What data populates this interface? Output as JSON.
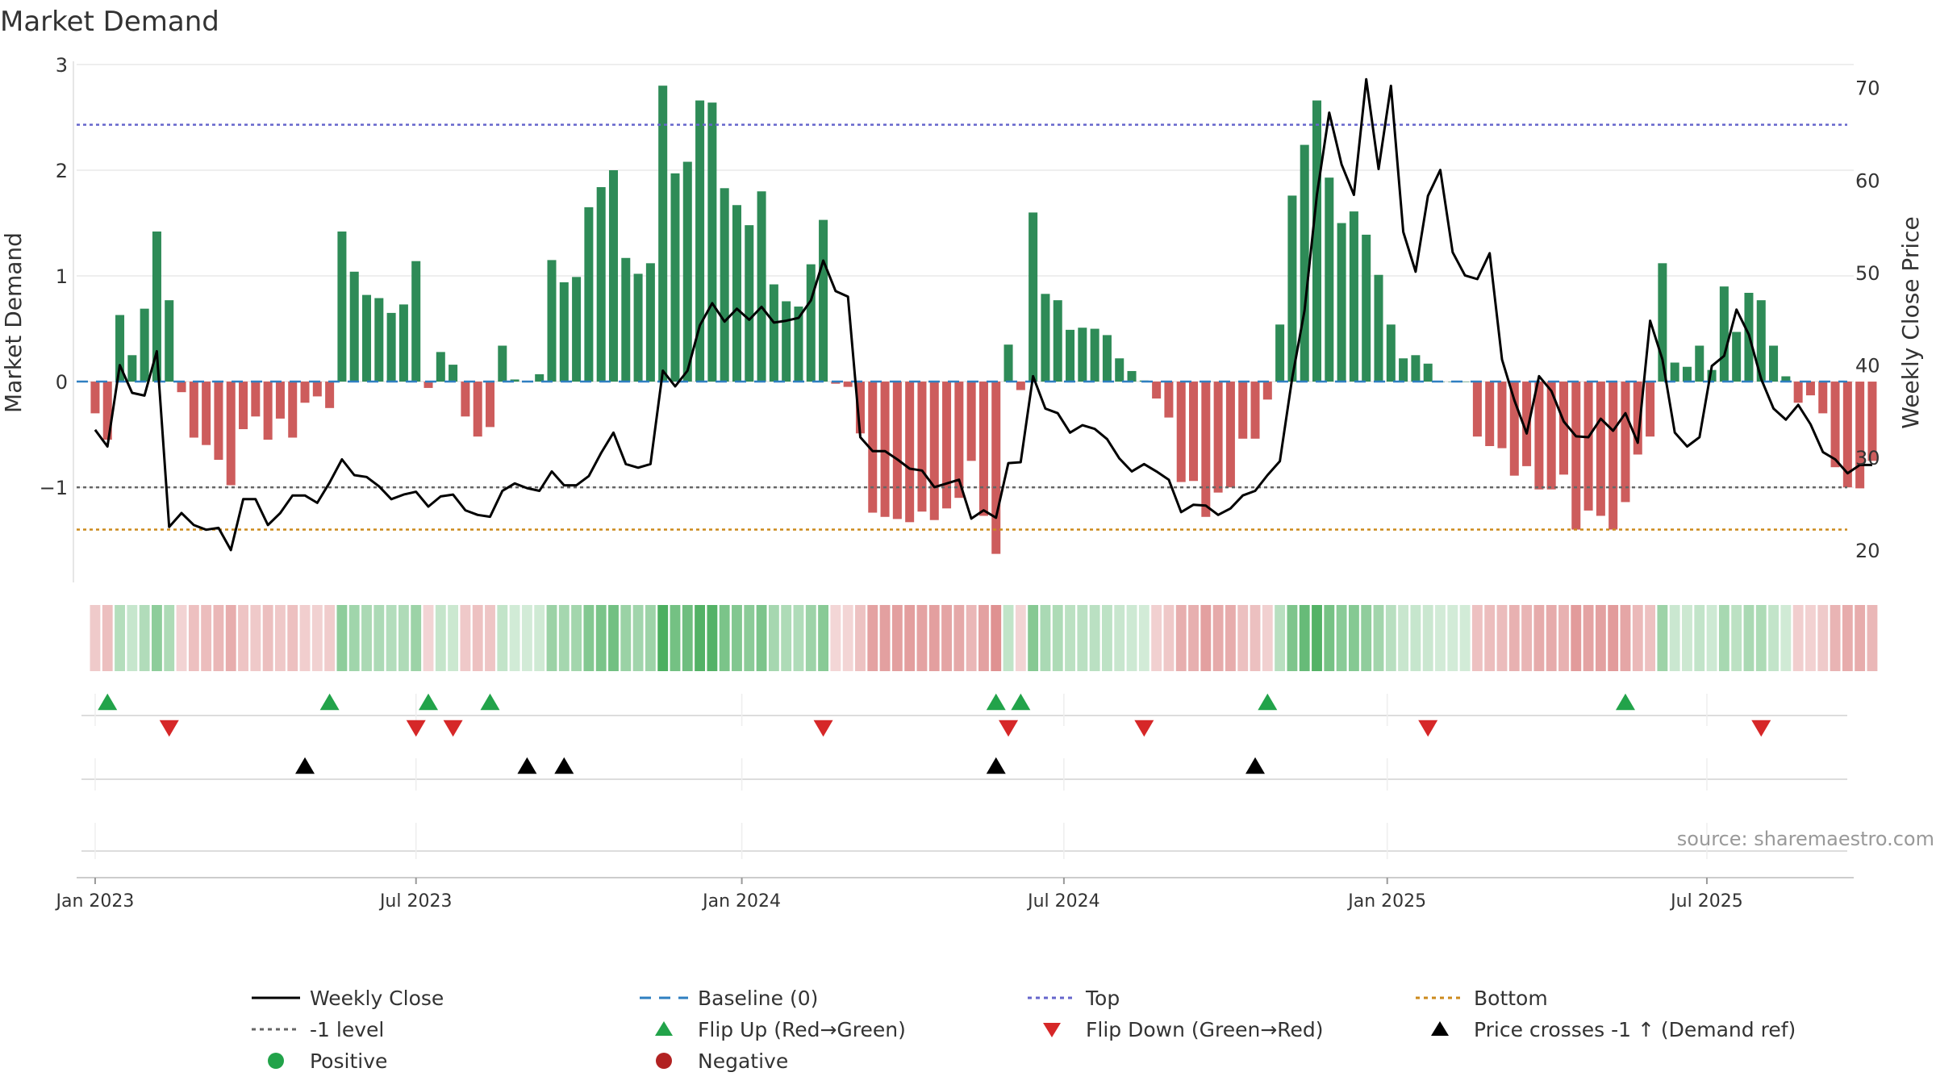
{
  "chart_data": {
    "type": "bar",
    "title": "Market Demand",
    "ylabel": "Market Demand",
    "y2label": "Weekly Close Price",
    "ylim": [
      -1.9,
      3.0
    ],
    "y2lim": [
      16.5,
      72.5
    ],
    "yticks": [
      -1,
      0,
      1,
      2,
      3
    ],
    "y2ticks": [
      20,
      30,
      40,
      50,
      60,
      70
    ],
    "x_tick_labels": [
      "Jan 2023",
      "Jul 2023",
      "Jan 2024",
      "Jul 2024",
      "Jan 2025",
      "Jul 2025"
    ],
    "x_tick_weeks": [
      0,
      26,
      52.4,
      78.5,
      104.7,
      130.6
    ],
    "x_range_weeks": [
      -1.5,
      142.5
    ],
    "reference_lines": {
      "top": 2.43,
      "minus_one": -1.0,
      "bottom": -1.4,
      "baseline": 0
    },
    "demand_weekly": [
      -0.3,
      -0.55,
      0.63,
      0.25,
      0.69,
      1.42,
      0.77,
      -0.1,
      -0.53,
      -0.6,
      -0.74,
      -0.98,
      -0.45,
      -0.33,
      -0.55,
      -0.35,
      -0.53,
      -0.2,
      -0.14,
      -0.25,
      1.42,
      1.04,
      0.82,
      0.79,
      0.65,
      0.73,
      1.14,
      -0.06,
      0.28,
      0.16,
      -0.33,
      -0.52,
      -0.43,
      0.34,
      0.02,
      0.0,
      0.07,
      1.15,
      0.94,
      0.99,
      1.65,
      1.84,
      2.0,
      1.17,
      1.02,
      1.12,
      2.8,
      1.97,
      2.08,
      2.66,
      2.64,
      1.83,
      1.67,
      1.48,
      1.8,
      0.92,
      0.76,
      0.71,
      1.11,
      1.53,
      -0.02,
      -0.05,
      -0.49,
      -1.24,
      -1.28,
      -1.3,
      -1.33,
      -1.23,
      -1.31,
      -1.2,
      -1.1,
      -0.75,
      -1.27,
      -1.63,
      0.35,
      -0.08,
      1.6,
      0.83,
      0.77,
      0.49,
      0.51,
      0.5,
      0.44,
      0.22,
      0.1,
      0.01,
      -0.16,
      -0.34,
      -0.95,
      -0.94,
      -1.28,
      -1.05,
      -1.0,
      -0.54,
      -0.54,
      -0.17,
      0.54,
      1.76,
      2.24,
      2.66,
      1.93,
      1.5,
      1.61,
      1.39,
      1.01,
      0.54,
      0.22,
      0.25,
      0.17,
      0.0,
      0.0,
      0.0,
      -0.52,
      -0.61,
      -0.63,
      -0.89,
      -0.8,
      -1.02,
      -1.02,
      -0.88,
      -1.4,
      -1.22,
      -1.27,
      -1.4,
      -1.14,
      -0.69,
      -0.52,
      1.12,
      0.18,
      0.14,
      0.34,
      0.11,
      0.9,
      0.47,
      0.84,
      0.77,
      0.34,
      0.05,
      -0.2,
      -0.13,
      -0.3,
      -0.81,
      -1.0,
      -1.01,
      -0.75
    ],
    "close_weekly": [
      33,
      31.2,
      40,
      37,
      36.7,
      41.5,
      22.5,
      24,
      22.7,
      22.2,
      22.4,
      20,
      25.5,
      25.5,
      22.7,
      24,
      25.9,
      25.9,
      25.1,
      27.3,
      29.8,
      28.1,
      27.9,
      26.9,
      25.5,
      26,
      26.3,
      24.7,
      25.8,
      26,
      24.3,
      23.8,
      23.6,
      26.4,
      27.2,
      26.7,
      26.4,
      28.5,
      27,
      27,
      28,
      30.5,
      32.7,
      29.3,
      28.9,
      29.3,
      39.4,
      37.7,
      39.4,
      44.3,
      46.7,
      44.7,
      46.1,
      44.9,
      46.3,
      44.6,
      44.8,
      45.1,
      47,
      51.3,
      48,
      47.4,
      32.2,
      30.7,
      30.7,
      29.8,
      28.8,
      28.6,
      26.8,
      27.2,
      27.6,
      23.4,
      24.3,
      23.5,
      29.4,
      29.5,
      38.8,
      35.3,
      34.8,
      32.7,
      33.5,
      33.1,
      32,
      29.9,
      28.5,
      29.3,
      28.5,
      27.6,
      24.1,
      24.9,
      24.8,
      23.8,
      24.5,
      25.9,
      26.4,
      28.1,
      29.6,
      38.6,
      45.9,
      58.4,
      67.3,
      61.7,
      58.4,
      70.9,
      61.2,
      70.2,
      54.4,
      50.1,
      58.3,
      61.1,
      52.2,
      49.7,
      49.3,
      52.1,
      40.6,
      36.2,
      32.6,
      38.8,
      37.2,
      33.9,
      32.3,
      32.2,
      34.2,
      32.9,
      34.8,
      31.6,
      44.8,
      40.6,
      32.7,
      31.2,
      32.2,
      39.9,
      41,
      46,
      43.3,
      38.5,
      35.3,
      34.1,
      35.7,
      33.6,
      30.6,
      29.8,
      28.3,
      29.2,
      29.2
    ],
    "color_strip": {
      "positive_color": "#4caf60",
      "negative_color": "#d05f5f"
    },
    "events": {
      "flip_up": [
        1,
        19,
        27,
        32,
        73,
        75,
        95,
        124
      ],
      "flip_down": [
        6,
        26,
        29,
        59,
        74,
        85,
        108,
        135
      ],
      "price_cross_up": [
        17,
        35,
        38,
        73,
        94
      ]
    },
    "legend": [
      {
        "key": "weekly_close",
        "label": "Weekly Close",
        "symbol": "solid-line",
        "color": "#000000"
      },
      {
        "key": "baseline",
        "label": "Baseline (0)",
        "symbol": "dashed-line",
        "color": "#2f7fc1"
      },
      {
        "key": "top",
        "label": "Top",
        "symbol": "dotted-line",
        "color": "#6666cc"
      },
      {
        "key": "bottom",
        "label": "Bottom",
        "symbol": "dotted-line",
        "color": "#cc8a1c"
      },
      {
        "key": "minus_one",
        "label": "-1 level",
        "symbol": "dotted-line",
        "color": "#666666"
      },
      {
        "key": "flip_up",
        "label": "Flip Up (Red→Green)",
        "symbol": "triangle-up",
        "color": "#22a34a"
      },
      {
        "key": "flip_down",
        "label": "Flip Down (Green→Red)",
        "symbol": "triangle-down",
        "color": "#d62728"
      },
      {
        "key": "price_cross",
        "label": "Price crosses -1 ↑ (Demand ref)",
        "symbol": "triangle-up",
        "color": "#000000"
      },
      {
        "key": "positive",
        "label": "Positive",
        "symbol": "circle",
        "color": "#22a34a"
      },
      {
        "key": "negative",
        "label": "Negative",
        "symbol": "circle",
        "color": "#b22222"
      }
    ],
    "source": "source: sharemaestro.com",
    "colors": {
      "bar_positive": "#2e8b57",
      "bar_negative": "#cd5c5c",
      "close_line": "#000000",
      "baseline": "#2f7fc1",
      "top_line": "#6666cc",
      "bottom_line": "#cc8a1c",
      "minus_one_line": "#666666",
      "grid": "#e8e8e8",
      "text": "#333333"
    }
  }
}
